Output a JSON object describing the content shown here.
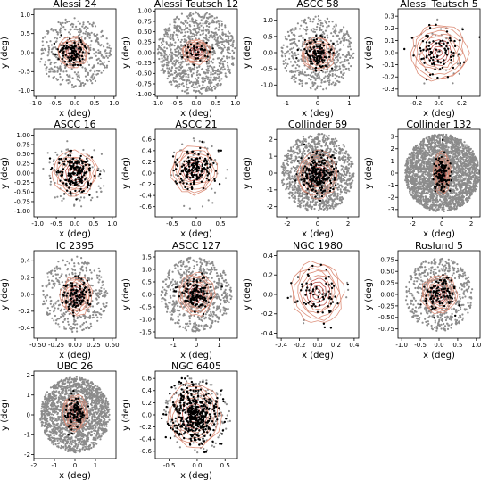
{
  "chart_data": [
    {
      "type": "scatter",
      "title": "Alessi 24",
      "xlabel": "x (deg)",
      "ylabel": "y (deg)",
      "xlim": [
        -1.05,
        1.05
      ],
      "ylim": [
        -1.15,
        1.15
      ],
      "xticks": [
        "-1.0",
        "-0.5",
        "0.0",
        "0.5",
        "1.0"
      ],
      "xtickv": [
        -1,
        -0.5,
        0,
        0.5,
        1
      ],
      "yticks": [
        "-1.0",
        "-0.5",
        "0.0",
        "0.5",
        "1.0"
      ],
      "ytickv": [
        -1,
        -0.5,
        0,
        0.5,
        1
      ],
      "shape": "disk",
      "field_r": [
        0.92,
        0.92
      ],
      "core_r": [
        0.38,
        0.38
      ],
      "core_c": [
        -0.05,
        0.02
      ],
      "n_field": 420,
      "n_member": 110,
      "seed": 11
    },
    {
      "type": "scatter",
      "title": "Alessi Teutsch 12",
      "xlabel": "x (deg)",
      "ylabel": "y (deg)",
      "xlim": [
        -1.05,
        1.05
      ],
      "ylim": [
        -1.05,
        1.05
      ],
      "xticks": [
        "-1.0",
        "-0.5",
        "0.0",
        "0.5",
        "1.0"
      ],
      "xtickv": [
        -1,
        -0.5,
        0,
        0.5,
        1
      ],
      "yticks": [
        "-1.00",
        "-0.75",
        "-0.50",
        "-0.25",
        "0.00",
        "0.25",
        "0.50",
        "0.75",
        "1.00"
      ],
      "ytickv": [
        -1,
        -0.75,
        -0.5,
        -0.25,
        0,
        0.25,
        0.5,
        0.75,
        1
      ],
      "shape": "disk",
      "field_r": [
        1.0,
        1.0
      ],
      "core_r": [
        0.35,
        0.28
      ],
      "core_c": [
        0.0,
        0.02
      ],
      "n_field": 900,
      "n_member": 40,
      "seed": 23
    },
    {
      "type": "scatter",
      "title": "ASCC 58",
      "xlabel": "x (deg)",
      "ylabel": "y (deg)",
      "xlim": [
        -1.3,
        1.3
      ],
      "ylim": [
        -1.35,
        1.35
      ],
      "xticks": [
        "-1",
        "0",
        "1"
      ],
      "xtickv": [
        -1,
        0,
        1
      ],
      "yticks": [
        "-1.0",
        "-0.5",
        "0.0",
        "0.5",
        "1.0"
      ],
      "ytickv": [
        -1,
        -0.5,
        0,
        0.5,
        1
      ],
      "shape": "disk",
      "field_r": [
        1.15,
        1.15
      ],
      "core_r": [
        0.5,
        0.5
      ],
      "core_c": [
        0.0,
        -0.05
      ],
      "n_field": 520,
      "n_member": 120,
      "seed": 37
    },
    {
      "type": "scatter",
      "title": "Alessi Teutsch 5",
      "xlabel": "x (deg)",
      "ylabel": "y (deg)",
      "xlim": [
        -0.36,
        0.36
      ],
      "ylim": [
        -0.36,
        0.36
      ],
      "xticks": [
        "-0.2",
        "0.0",
        "0.2"
      ],
      "xtickv": [
        -0.2,
        0,
        0.2
      ],
      "yticks": [
        "-0.3",
        "-0.2",
        "-0.1",
        "0.0",
        "0.1",
        "0.2",
        "0.3"
      ],
      "ytickv": [
        -0.3,
        -0.2,
        -0.1,
        0,
        0.1,
        0.2,
        0.3
      ],
      "shape": "disk",
      "field_r": [
        0.3,
        0.3
      ],
      "core_r": [
        0.24,
        0.22
      ],
      "core_c": [
        0.0,
        0.0
      ],
      "n_field": 30,
      "n_member": 90,
      "seed": 41
    },
    {
      "type": "scatter",
      "title": "ASCC 16",
      "xlabel": "x (deg)",
      "ylabel": "y (deg)",
      "xlim": [
        -1.1,
        1.1
      ],
      "ylim": [
        -1.15,
        1.15
      ],
      "xticks": [
        "-1.0",
        "-0.5",
        "0.0",
        "0.5",
        "1.0"
      ],
      "xtickv": [
        -1,
        -0.5,
        0,
        0.5,
        1
      ],
      "yticks": [
        "-1.00",
        "-0.75",
        "-0.50",
        "-0.25",
        "0.00",
        "0.25",
        "0.50",
        "0.75",
        "1.00"
      ],
      "ytickv": [
        -1,
        -0.75,
        -0.5,
        -0.25,
        0,
        0.25,
        0.5,
        0.75,
        1
      ],
      "shape": "disk",
      "field_r": [
        0.9,
        0.9
      ],
      "core_r": [
        0.55,
        0.55
      ],
      "core_c": [
        0.0,
        0.0
      ],
      "n_field": 90,
      "n_member": 180,
      "seed": 53
    },
    {
      "type": "scatter",
      "title": "ASCC 21",
      "xlabel": "x (deg)",
      "ylabel": "y (deg)",
      "xlim": [
        -0.85,
        0.85
      ],
      "ylim": [
        -0.78,
        0.78
      ],
      "xticks": [
        "-0.5",
        "0.0",
        "0.5"
      ],
      "xtickv": [
        -0.5,
        0,
        0.5
      ],
      "yticks": [
        "-0.6",
        "-0.4",
        "-0.2",
        "0.0",
        "0.2",
        "0.4",
        "0.6"
      ],
      "ytickv": [
        -0.6,
        -0.4,
        -0.2,
        0,
        0.2,
        0.4,
        0.6
      ],
      "shape": "disk",
      "field_r": [
        0.75,
        0.65
      ],
      "core_r": [
        0.45,
        0.4
      ],
      "core_c": [
        -0.05,
        0.05
      ],
      "n_field": 40,
      "n_member": 160,
      "seed": 67
    },
    {
      "type": "scatter",
      "title": "Collinder 69",
      "xlabel": "x (deg)",
      "ylabel": "y (deg)",
      "xlim": [
        -2.7,
        2.7
      ],
      "ylim": [
        -2.6,
        2.6
      ],
      "xticks": [
        "-2",
        "0",
        "2"
      ],
      "xtickv": [
        -2,
        0,
        2
      ],
      "yticks": [
        "-2",
        "-1",
        "0",
        "1",
        "2"
      ],
      "ytickv": [
        -2,
        -1,
        0,
        1,
        2
      ],
      "shape": "disk",
      "field_r": [
        2.4,
        2.35
      ],
      "core_r": [
        1.3,
        1.3
      ],
      "core_c": [
        0.0,
        -0.1
      ],
      "n_field": 1100,
      "n_member": 230,
      "seed": 79
    },
    {
      "type": "scatter",
      "title": "Collinder 132",
      "xlabel": "x (deg)",
      "ylabel": "y (deg)",
      "xlim": [
        -3.0,
        2.6
      ],
      "ylim": [
        -3.6,
        3.6
      ],
      "xticks": [
        "-2",
        "0",
        "2"
      ],
      "xtickv": [
        -2,
        0,
        2
      ],
      "yticks": [
        "-3",
        "-2",
        "-1",
        "0",
        "1",
        "2",
        "3"
      ],
      "ytickv": [
        -3,
        -2,
        -1,
        0,
        1,
        2,
        3
      ],
      "shape": "disk",
      "field_r": [
        2.55,
        3.2
      ],
      "core_r": [
        0.55,
        1.7
      ],
      "core_c": [
        0.0,
        0.0
      ],
      "n_field": 2500,
      "n_member": 110,
      "seed": 83
    },
    {
      "type": "scatter",
      "title": "IC 2395",
      "xlabel": "x (deg)",
      "ylabel": "y (deg)",
      "xlim": [
        -0.55,
        0.55
      ],
      "ylim": [
        -0.52,
        0.52
      ],
      "xticks": [
        "-0.50",
        "-0.25",
        "0.00",
        "0.25",
        "0.50"
      ],
      "xtickv": [
        -0.5,
        -0.25,
        0,
        0.25,
        0.5
      ],
      "yticks": [
        "-0.4",
        "-0.2",
        "0.0",
        "0.2",
        "0.4"
      ],
      "ytickv": [
        -0.4,
        -0.2,
        0,
        0.2,
        0.4
      ],
      "shape": "disk",
      "field_r": [
        0.45,
        0.45
      ],
      "core_r": [
        0.2,
        0.22
      ],
      "core_c": [
        0.02,
        -0.02
      ],
      "n_field": 380,
      "n_member": 110,
      "seed": 97
    },
    {
      "type": "scatter",
      "title": "ASCC 127",
      "xlabel": "x (deg)",
      "ylabel": "y (deg)",
      "xlim": [
        -1.8,
        1.8
      ],
      "ylim": [
        -1.75,
        1.75
      ],
      "xticks": [
        "-1",
        "0",
        "1"
      ],
      "xtickv": [
        -1,
        0,
        1
      ],
      "yticks": [
        "-1.5",
        "-1.0",
        "-0.5",
        "0.0",
        "0.5",
        "1.0",
        "1.5"
      ],
      "ytickv": [
        -1.5,
        -1,
        -0.5,
        0,
        0.5,
        1,
        1.5
      ],
      "shape": "disk",
      "field_r": [
        1.55,
        1.5
      ],
      "core_r": [
        0.75,
        0.8
      ],
      "core_c": [
        0.0,
        0.0
      ],
      "n_field": 620,
      "n_member": 120,
      "seed": 103
    },
    {
      "type": "scatter",
      "title": "NGC 1980",
      "xlabel": "x (deg)",
      "ylabel": "y (deg)",
      "xlim": [
        -0.45,
        0.45
      ],
      "ylim": [
        -0.45,
        0.45
      ],
      "xticks": [
        "-0.4",
        "-0.2",
        "0.0",
        "0.2",
        "0.4"
      ],
      "xtickv": [
        -0.4,
        -0.2,
        0,
        0.2,
        0.4
      ],
      "yticks": [
        "-0.4",
        "-0.2",
        "0.0",
        "0.2",
        "0.4"
      ],
      "ytickv": [
        -0.4,
        -0.2,
        0,
        0.2,
        0.4
      ],
      "shape": "disk",
      "field_r": [
        0.35,
        0.35
      ],
      "core_r": [
        0.27,
        0.3
      ],
      "core_c": [
        0.0,
        0.02
      ],
      "n_field": 10,
      "n_member": 70,
      "seed": 109
    },
    {
      "type": "scatter",
      "title": "Roslund 5",
      "xlabel": "x (deg)",
      "ylabel": "y (deg)",
      "xlim": [
        -1.1,
        1.1
      ],
      "ylim": [
        -0.95,
        0.95
      ],
      "xticks": [
        "-1.0",
        "-0.5",
        "0.0",
        "0.5",
        "1.0"
      ],
      "xtickv": [
        -1,
        -0.5,
        0,
        0.5,
        1
      ],
      "yticks": [
        "-0.75",
        "-0.50",
        "-0.25",
        "0.00",
        "0.25",
        "0.50",
        "0.75"
      ],
      "ytickv": [
        -0.75,
        -0.5,
        -0.25,
        0,
        0.25,
        0.5,
        0.75
      ],
      "shape": "disk",
      "field_r": [
        0.9,
        0.8
      ],
      "core_r": [
        0.45,
        0.4
      ],
      "core_c": [
        0.0,
        0.0
      ],
      "n_field": 520,
      "n_member": 100,
      "seed": 113
    },
    {
      "type": "scatter",
      "title": "UBC 26",
      "xlabel": "x (deg)",
      "ylabel": "y (deg)",
      "xlim": [
        -2.0,
        2.0
      ],
      "ylim": [
        -2.2,
        2.2
      ],
      "xticks": [
        "-2",
        "-1",
        "0",
        "1"
      ],
      "xtickv": [
        -2,
        -1,
        0,
        1
      ],
      "yticks": [
        "-2",
        "-1",
        "0",
        "1",
        "2"
      ],
      "ytickv": [
        -2,
        -1,
        0,
        1,
        2
      ],
      "shape": "disk",
      "field_r": [
        1.7,
        1.9
      ],
      "core_r": [
        0.6,
        0.85
      ],
      "core_c": [
        0.0,
        0.1
      ],
      "n_field": 1700,
      "n_member": 90,
      "seed": 127
    },
    {
      "type": "scatter",
      "title": "NGC 6405",
      "xlabel": "x (deg)",
      "ylabel": "y (deg)",
      "xlim": [
        -0.75,
        0.72
      ],
      "ylim": [
        -0.72,
        0.72
      ],
      "xticks": [
        "-0.5",
        "0.0",
        "0.5"
      ],
      "xtickv": [
        -0.5,
        0,
        0.5
      ],
      "yticks": [
        "-0.6",
        "-0.4",
        "-0.2",
        "0.0",
        "0.2",
        "0.4",
        "0.6"
      ],
      "ytickv": [
        -0.6,
        -0.4,
        -0.2,
        0,
        0.2,
        0.4,
        0.6
      ],
      "shape": "disk",
      "field_r": [
        0.6,
        0.62
      ],
      "core_r": [
        0.45,
        0.5
      ],
      "core_c": [
        -0.05,
        0.0
      ],
      "n_field": 160,
      "n_member": 420,
      "seed": 131
    }
  ],
  "colors": {
    "field_star": "#8c8c8c",
    "member_star": "#000000",
    "contour": "#d9836c",
    "contour_inner": "#b9413a",
    "axes": "#000000"
  }
}
